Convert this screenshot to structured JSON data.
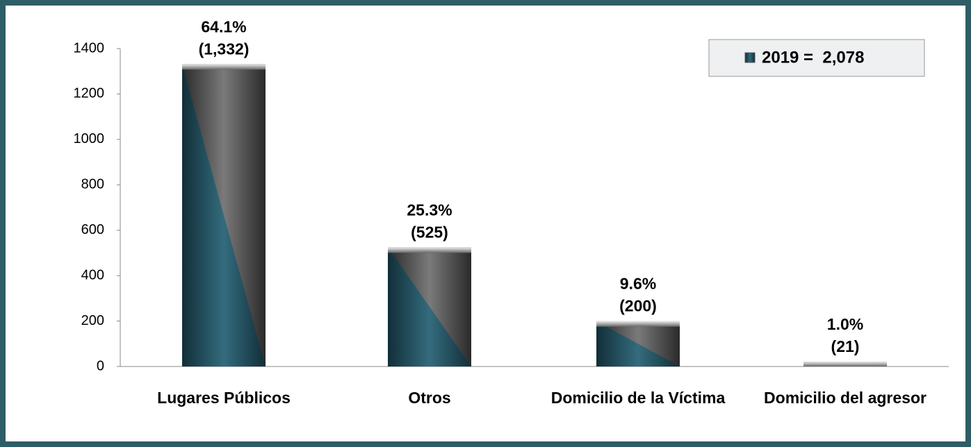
{
  "chart_data": {
    "type": "bar",
    "categories": [
      "Lugares Públicos",
      "Otros",
      "Domicilio de la Víctima",
      "Domicilio del agresor"
    ],
    "values": [
      1332,
      525,
      200,
      21
    ],
    "value_labels": [
      "(1,332)",
      "(525)",
      "(200)",
      "(21)"
    ],
    "percentages": [
      64.1,
      25.3,
      9.6,
      1.0
    ],
    "percentage_labels": [
      "64.1%",
      "25.3%",
      "9.6%",
      "1.0%"
    ],
    "legend": "2019 =  2,078",
    "color": "#1f4e5c",
    "ylim": [
      0,
      1400
    ],
    "yticks": [
      0,
      200,
      400,
      600,
      800,
      1000,
      1200,
      1400
    ],
    "grid": false
  }
}
